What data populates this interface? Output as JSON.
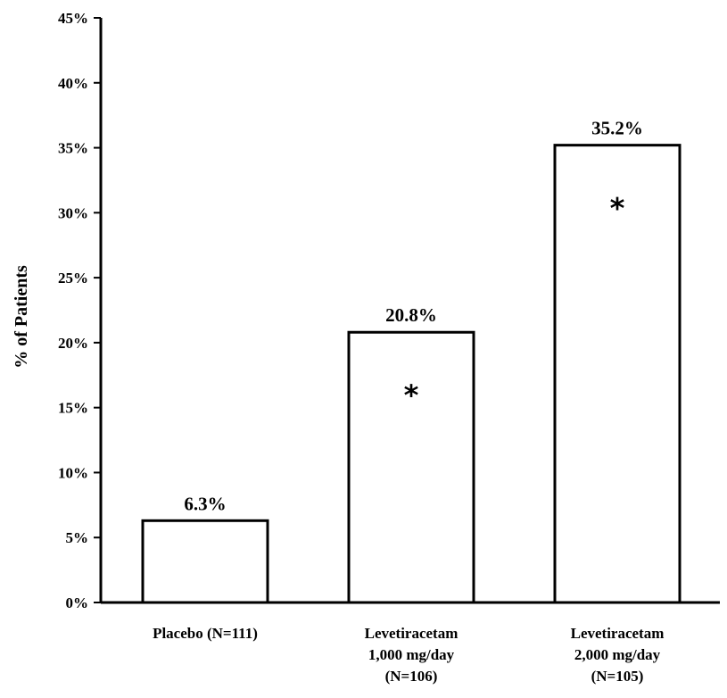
{
  "chart_data": {
    "type": "bar",
    "title": "",
    "xlabel": "",
    "ylabel": "% of Patients",
    "ylim": [
      0,
      45
    ],
    "y_ticks": [
      "0%",
      "5%",
      "10%",
      "15%",
      "20%",
      "25%",
      "30%",
      "35%",
      "40%",
      "45%"
    ],
    "y_tick_values": [
      0,
      5,
      10,
      15,
      20,
      25,
      30,
      35,
      40,
      45
    ],
    "grid": false,
    "categories": [
      [
        "Placebo (N=111)"
      ],
      [
        "Levetiracetam",
        "1,000 mg/day",
        "(N=106)"
      ],
      [
        "Levetiracetam",
        "2,000 mg/day",
        "(N=105)"
      ]
    ],
    "values": [
      6.3,
      20.8,
      35.2
    ],
    "data_labels": [
      "6.3%",
      "20.8%",
      "35.2%"
    ],
    "significance_markers": [
      "",
      "*",
      "*"
    ],
    "colors": {
      "bar_fill": "#ffffff",
      "bar_stroke": "#000000",
      "axis": "#000000"
    }
  }
}
